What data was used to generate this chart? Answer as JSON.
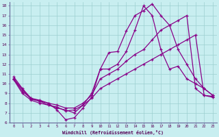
{
  "xlabel": "Windchill (Refroidissement éolien,°C)",
  "xlim": [
    -0.5,
    23.5
  ],
  "ylim": [
    6,
    18.4
  ],
  "yticks": [
    6,
    7,
    8,
    9,
    10,
    11,
    12,
    13,
    14,
    15,
    16,
    17,
    18
  ],
  "xticks": [
    0,
    1,
    2,
    3,
    4,
    5,
    6,
    7,
    8,
    9,
    10,
    11,
    12,
    13,
    14,
    15,
    16,
    17,
    18,
    19,
    20,
    21,
    22,
    23
  ],
  "bg_color": "#c8eef0",
  "grid_color": "#9ccfcf",
  "line_color": "#880088",
  "line1_x": [
    0,
    1,
    2,
    3,
    4,
    5,
    6,
    7,
    8,
    9,
    10,
    11,
    12,
    13,
    14,
    15,
    16,
    17,
    18,
    19,
    20,
    21,
    22,
    23
  ],
  "line1_y": [
    10.7,
    9.5,
    8.5,
    8.3,
    8.0,
    7.3,
    6.3,
    6.5,
    7.5,
    8.6,
    11.5,
    13.2,
    13.3,
    15.4,
    17.0,
    17.5,
    18.2,
    17.0,
    16.0,
    13.5,
    12.0,
    10.5,
    9.5,
    8.8
  ],
  "line2_x": [
    0,
    1,
    2,
    3,
    4,
    5,
    6,
    7,
    8,
    9,
    10,
    11,
    12,
    13,
    14,
    15,
    16,
    17,
    18,
    19,
    20,
    21,
    22,
    23
  ],
  "line2_y": [
    10.5,
    9.4,
    8.4,
    8.2,
    7.8,
    7.5,
    7.3,
    7.0,
    7.8,
    9.0,
    11.5,
    11.5,
    12.0,
    13.3,
    15.5,
    18.0,
    17.0,
    13.5,
    11.5,
    11.8,
    10.5,
    10.0,
    9.5,
    8.8
  ],
  "line3_x": [
    0,
    1,
    2,
    3,
    4,
    5,
    6,
    7,
    8,
    9,
    10,
    11,
    12,
    13,
    14,
    15,
    16,
    17,
    18,
    19,
    20,
    21,
    22,
    23
  ],
  "line3_y": [
    10.5,
    9.2,
    8.5,
    8.2,
    8.0,
    7.8,
    7.5,
    7.5,
    8.0,
    8.8,
    10.5,
    11.0,
    11.5,
    12.3,
    13.0,
    13.5,
    14.5,
    15.5,
    16.0,
    16.5,
    17.0,
    9.5,
    8.8,
    8.7
  ],
  "line4_x": [
    0,
    1,
    2,
    3,
    4,
    5,
    6,
    7,
    8,
    9,
    10,
    11,
    12,
    13,
    14,
    15,
    16,
    17,
    18,
    19,
    20,
    21,
    22,
    23
  ],
  "line4_y": [
    10.4,
    9.0,
    8.3,
    8.0,
    7.8,
    7.6,
    7.2,
    7.3,
    7.8,
    8.5,
    9.5,
    10.0,
    10.5,
    11.0,
    11.5,
    12.0,
    12.5,
    13.0,
    13.5,
    14.0,
    14.5,
    15.0,
    8.8,
    8.6
  ]
}
